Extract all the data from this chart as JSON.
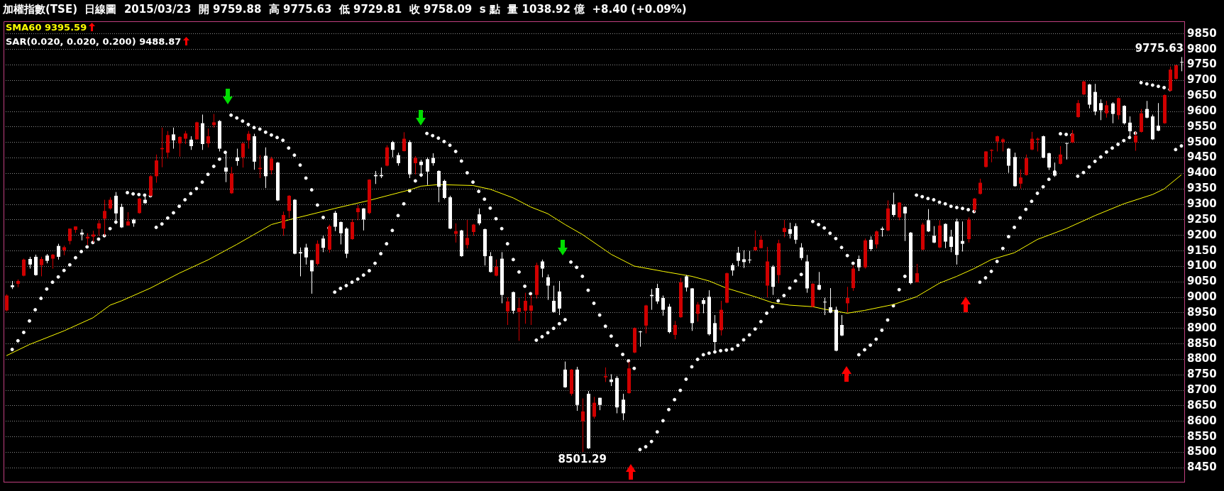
{
  "chart_data": {
    "type": "candlestick",
    "title": "加權指數(TSE)  日線圖  2015/03/23",
    "subtitle": "開 9759.88  高 9775.63  低 9729.81  收 9758.09  s 點  量 1038.92 億  +8.40 (+0.09%)",
    "categories": [
      null,
      null,
      null,
      null,
      null,
      null,
      null,
      null,
      null,
      null,
      null,
      null,
      null,
      null,
      null,
      null,
      null,
      null,
      null,
      null,
      null,
      null,
      null,
      null,
      null,
      null,
      null,
      null,
      null,
      null,
      null,
      null,
      null,
      null,
      null,
      null,
      null,
      null,
      null,
      null,
      null,
      null,
      null,
      null,
      null,
      null,
      null,
      null,
      null,
      null,
      null,
      null,
      null,
      null,
      null,
      null,
      null,
      null,
      null,
      null,
      null,
      null,
      null,
      null,
      null,
      null,
      null,
      null,
      null,
      null,
      null,
      null,
      null,
      null,
      null,
      null,
      null,
      null,
      null,
      null,
      null,
      null,
      null,
      null,
      null,
      null,
      null,
      null,
      null,
      null,
      null,
      null,
      null,
      null,
      null,
      null,
      null,
      null,
      null,
      null,
      null,
      null,
      null,
      null,
      null,
      null,
      null,
      null,
      null,
      null,
      null,
      null,
      null,
      null,
      null,
      null,
      null,
      null,
      null,
      null,
      null,
      null,
      null,
      null,
      null,
      null,
      null,
      null,
      null,
      null,
      null,
      null,
      null,
      null,
      null,
      null,
      null,
      null,
      null,
      null,
      null,
      null,
      null,
      null,
      null,
      null,
      null,
      null,
      null,
      null,
      null,
      null,
      null,
      null,
      null,
      null,
      null,
      null,
      null,
      null,
      null,
      null,
      null,
      null,
      null,
      null,
      null,
      null,
      null,
      null,
      null,
      null,
      null,
      null,
      null,
      null,
      null,
      null,
      null,
      null,
      null,
      null,
      null,
      null,
      null,
      null,
      null,
      null,
      null,
      null,
      null,
      null,
      null,
      null,
      null,
      null,
      null,
      null,
      null,
      null,
      null,
      null,
      null,
      null,
      null
    ],
    "ohlc": [
      [
        8958,
        9010,
        8955,
        9006
      ],
      [
        9039,
        9053,
        9027,
        9033
      ],
      [
        9044,
        9058,
        9033,
        9053
      ],
      [
        9070,
        9125,
        9068,
        9122
      ],
      [
        9124,
        9131,
        9093,
        9106
      ],
      [
        9131,
        9138,
        9070,
        9072
      ],
      [
        9104,
        9131,
        9068,
        9124
      ],
      [
        9135,
        9140,
        9110,
        9118
      ],
      [
        9125,
        9140,
        9093,
        9138
      ],
      [
        9166,
        9173,
        9122,
        9131
      ],
      [
        9152,
        9167,
        9136,
        9162
      ],
      [
        9182,
        9222,
        9171,
        9222
      ],
      [
        9218,
        9229,
        9208,
        9229
      ],
      [
        9209,
        9220,
        9184,
        9203
      ],
      [
        9190,
        9207,
        9169,
        9196
      ],
      [
        9196,
        9215,
        9177,
        9203
      ],
      [
        9222,
        9249,
        9199,
        9239
      ],
      [
        9254,
        9315,
        9199,
        9279
      ],
      [
        9287,
        9323,
        9283,
        9315
      ],
      [
        9328,
        9340,
        9237,
        9271
      ],
      [
        9292,
        9302,
        9224,
        9226
      ],
      [
        9232,
        9275,
        9232,
        9245
      ],
      [
        9251,
        9254,
        9228,
        9239
      ],
      [
        9272,
        9321,
        9270,
        9319
      ],
      [
        9315,
        9332,
        9302,
        9304
      ],
      [
        9328,
        9395,
        9325,
        9391
      ],
      [
        9391,
        9461,
        9370,
        9442
      ],
      [
        9478,
        9548,
        9420,
        9482
      ],
      [
        9467,
        9537,
        9448,
        9524
      ],
      [
        9526,
        9548,
        9480,
        9507
      ],
      [
        9497,
        9520,
        9454,
        9518
      ],
      [
        9512,
        9537,
        9495,
        9529
      ],
      [
        9509,
        9520,
        9476,
        9488
      ],
      [
        9510,
        9567,
        9509,
        9565
      ],
      [
        9562,
        9590,
        9476,
        9495
      ],
      [
        9497,
        9545,
        9484,
        9520
      ],
      [
        9556,
        9592,
        9548,
        9565
      ],
      [
        9569,
        9572,
        9471,
        9480
      ],
      [
        9419,
        9467,
        9372,
        9406
      ],
      [
        9336,
        9421,
        9334,
        9400
      ],
      [
        9452,
        9480,
        9425,
        9440
      ],
      [
        9452,
        9501,
        9419,
        9497
      ],
      [
        9507,
        9537,
        9480,
        9528
      ],
      [
        9520,
        9528,
        9412,
        9438
      ],
      [
        9414,
        9459,
        9385,
        9418
      ],
      [
        9457,
        9484,
        9353,
        9391
      ],
      [
        9410,
        9454,
        9397,
        9448
      ],
      [
        9435,
        9437,
        9311,
        9313
      ],
      [
        9222,
        9277,
        9199,
        9266
      ],
      [
        9279,
        9330,
        9256,
        9328
      ],
      [
        9315,
        9317,
        9139,
        9141
      ],
      [
        9146,
        9161,
        9068,
        9142
      ],
      [
        9161,
        9173,
        9106,
        9129
      ],
      [
        9120,
        9120,
        9012,
        9084
      ],
      [
        9108,
        9184,
        9103,
        9173
      ],
      [
        9190,
        9199,
        9146,
        9160
      ],
      [
        9154,
        9235,
        9144,
        9230
      ],
      [
        9273,
        9279,
        9214,
        9228
      ],
      [
        9243,
        9245,
        9171,
        9207
      ],
      [
        9222,
        9226,
        9127,
        9141
      ],
      [
        9188,
        9252,
        9186,
        9243
      ],
      [
        9275,
        9298,
        9249,
        9288
      ],
      [
        9287,
        9288,
        9216,
        9251
      ],
      [
        9272,
        9381,
        9268,
        9380
      ],
      [
        9395,
        9408,
        9366,
        9391
      ],
      [
        9395,
        9419,
        9385,
        9391
      ],
      [
        9425,
        9491,
        9423,
        9484
      ],
      [
        9501,
        9505,
        9452,
        9476
      ],
      [
        9459,
        9467,
        9425,
        9433
      ],
      [
        9472,
        9533,
        9471,
        9512
      ],
      [
        9501,
        9507,
        9385,
        9397
      ],
      [
        9433,
        9456,
        9397,
        9450
      ],
      [
        9438,
        9444,
        9389,
        9427
      ],
      [
        9446,
        9452,
        9363,
        9406
      ],
      [
        9450,
        9465,
        9425,
        9433
      ],
      [
        9408,
        9410,
        9307,
        9357
      ],
      [
        9376,
        9380,
        9317,
        9321
      ],
      [
        9323,
        9328,
        9220,
        9222
      ],
      [
        9205,
        9239,
        9177,
        9214
      ],
      [
        9216,
        9218,
        9131,
        9133
      ],
      [
        9169,
        9250,
        9158,
        9192
      ],
      [
        9211,
        9237,
        9199,
        9235
      ],
      [
        9268,
        9287,
        9233,
        9239
      ],
      [
        9220,
        9222,
        9103,
        9133
      ],
      [
        9133,
        9146,
        9080,
        9082
      ],
      [
        9070,
        9122,
        9068,
        9099
      ],
      [
        9125,
        9146,
        8981,
        9008
      ],
      [
        8955,
        9000,
        8911,
        8987
      ],
      [
        9017,
        9019,
        8947,
        8957
      ],
      [
        8953,
        8998,
        8860,
        8966
      ],
      [
        8957,
        9015,
        8915,
        8989
      ],
      [
        8957,
        9008,
        8911,
        8974
      ],
      [
        9008,
        9112,
        8996,
        9104
      ],
      [
        9116,
        9122,
        9065,
        9093
      ],
      [
        9065,
        9074,
        8992,
        9038
      ],
      [
        8989,
        9038,
        8951,
        8953
      ],
      [
        9019,
        9053,
        8943,
        8964
      ],
      [
        8767,
        8793,
        8708,
        8710
      ],
      [
        8689,
        8769,
        8683,
        8767
      ],
      [
        8767,
        8776,
        8634,
        8653
      ],
      [
        8600,
        8674,
        8501.29,
        8632
      ],
      [
        8689,
        8698,
        8511,
        8513
      ],
      [
        8615,
        8679,
        8609,
        8660
      ],
      [
        8676,
        8676,
        8636,
        8653
      ],
      [
        8742,
        8774,
        8727,
        8746
      ],
      [
        8735,
        8752,
        8714,
        8727
      ],
      [
        8740,
        8746,
        8626,
        8645
      ],
      [
        8670,
        8689,
        8604,
        8626
      ],
      [
        8691,
        8793,
        8689,
        8771
      ],
      [
        8822,
        8903,
        8820,
        8901
      ],
      [
        8890,
        8892,
        8841,
        8888
      ],
      [
        8909,
        8976,
        8884,
        8974
      ],
      [
        9008,
        9027,
        8960,
        9004
      ],
      [
        9030,
        9044,
        8979,
        8987
      ],
      [
        8998,
        9006,
        8941,
        8960
      ],
      [
        8970,
        8979,
        8884,
        8888
      ],
      [
        8879,
        8924,
        8865,
        8911
      ],
      [
        8936,
        9063,
        8934,
        9049
      ],
      [
        9068,
        9072,
        9019,
        9032
      ],
      [
        9029,
        9030,
        8892,
        8917
      ],
      [
        8947,
        8985,
        8922,
        8977
      ],
      [
        8991,
        8998,
        8949,
        8979
      ],
      [
        9002,
        9023,
        8877,
        8881
      ],
      [
        8917,
        8943,
        8828,
        8856
      ],
      [
        8894,
        8989,
        8877,
        8960
      ],
      [
        8983,
        9080,
        8981,
        9078
      ],
      [
        9104,
        9110,
        9070,
        9087
      ],
      [
        9144,
        9163,
        9101,
        9118
      ],
      [
        9123,
        9152,
        9095,
        9114
      ],
      [
        9122,
        9150,
        9110,
        9120
      ],
      [
        9152,
        9216,
        9150,
        9163
      ],
      [
        9159,
        9199,
        9158,
        9186
      ],
      [
        9038,
        9163,
        9000,
        9116
      ],
      [
        9099,
        9104,
        9008,
        9034
      ],
      [
        9072,
        9186,
        9046,
        9175
      ],
      [
        9211,
        9250,
        9194,
        9224
      ],
      [
        9220,
        9241,
        9190,
        9205
      ],
      [
        9230,
        9239,
        9173,
        9186
      ],
      [
        9161,
        9175,
        9120,
        9127
      ],
      [
        9116,
        9137,
        9015,
        9029
      ],
      [
        8970,
        9046,
        8968,
        9044
      ],
      [
        9040,
        9082,
        9023,
        9025
      ],
      [
        8986,
        8999,
        8943,
        8984
      ],
      [
        8968,
        9030,
        8949,
        8951
      ],
      [
        8960,
        8970,
        8826,
        8828
      ],
      [
        8911,
        8943,
        8875,
        8877
      ],
      [
        8981,
        9034,
        8951,
        8998
      ],
      [
        9030,
        9103,
        9021,
        9093
      ],
      [
        9124,
        9135,
        9085,
        9097
      ],
      [
        9097,
        9190,
        9093,
        9184
      ],
      [
        9186,
        9197,
        9150,
        9156
      ],
      [
        9171,
        9216,
        9158,
        9213
      ],
      [
        9222,
        9228,
        9196,
        9218
      ],
      [
        9216,
        9313,
        9214,
        9287
      ],
      [
        9300,
        9338,
        9260,
        9266
      ],
      [
        9258,
        9307,
        9249,
        9306
      ],
      [
        9292,
        9294,
        9182,
        9271
      ],
      [
        9209,
        9211,
        9042,
        9046
      ],
      [
        9049,
        9108,
        9048,
        9078
      ],
      [
        9154,
        9241,
        9152,
        9235
      ],
      [
        9249,
        9285,
        9211,
        9213
      ],
      [
        9199,
        9230,
        9175,
        9177
      ],
      [
        9161,
        9249,
        9159,
        9232
      ],
      [
        9237,
        9239,
        9159,
        9180
      ],
      [
        9196,
        9218,
        9146,
        9163
      ],
      [
        9245,
        9254,
        9106,
        9137
      ],
      [
        9182,
        9245,
        9148,
        9173
      ],
      [
        9188,
        9258,
        9177,
        9251
      ],
      [
        9283,
        9321,
        9275,
        9319
      ],
      [
        9334,
        9383,
        9332,
        9370
      ],
      [
        9421,
        9472,
        9419,
        9471
      ],
      [
        9473,
        9478,
        9436,
        9476
      ],
      [
        9503,
        9522,
        9471,
        9520
      ],
      [
        9501,
        9514,
        9471,
        9510
      ],
      [
        9480,
        9482,
        9402,
        9425
      ],
      [
        9453,
        9467,
        9357,
        9359
      ],
      [
        9367,
        9413,
        9351,
        9387
      ],
      [
        9395,
        9461,
        9393,
        9449
      ],
      [
        9477,
        9534,
        9475,
        9512
      ],
      [
        9508,
        9516,
        9471,
        9512
      ],
      [
        9520,
        9522,
        9449,
        9451
      ],
      [
        9465,
        9467,
        9411,
        9419
      ],
      [
        9405,
        9435,
        9389,
        9393
      ],
      [
        9431,
        9488,
        9429,
        9461
      ],
      [
        9498,
        9498,
        9445,
        9496
      ],
      [
        9500,
        9540,
        9498,
        9528
      ],
      [
        9582,
        9637,
        9580,
        9627
      ],
      [
        9655,
        9699,
        9653,
        9697
      ],
      [
        9687,
        9689,
        9610,
        9622
      ],
      [
        9663,
        9689,
        9588,
        9600
      ],
      [
        9627,
        9639,
        9572,
        9604
      ],
      [
        9594,
        9634,
        9580,
        9620
      ],
      [
        9626,
        9630,
        9562,
        9592
      ],
      [
        9588,
        9645,
        9574,
        9643
      ],
      [
        9618,
        9620,
        9558,
        9562
      ],
      [
        9564,
        9584,
        9516,
        9536
      ],
      [
        9500,
        9534,
        9473,
        9522
      ],
      [
        9534,
        9608,
        9532,
        9594
      ],
      [
        9608,
        9634,
        9578,
        9580
      ],
      [
        9584,
        9590,
        9508,
        9510
      ],
      [
        9554,
        9627,
        9536,
        9538
      ],
      [
        9562,
        9655,
        9560,
        9653
      ],
      [
        9667,
        9745,
        9665,
        9735
      ],
      [
        9705,
        9751,
        9703,
        9749
      ],
      [
        9759.88,
        9775.63,
        9729.81,
        9758.09
      ]
    ],
    "colors": [
      "#d00000",
      "#ffffff",
      "#d00000",
      "#d00000",
      "#ffffff",
      "#ffffff",
      "#d00000",
      "#ffffff",
      "#d00000",
      "#ffffff",
      "#d00000",
      "#d00000",
      "#d00000",
      "#ffffff",
      "#d00000",
      "#d00000",
      "#d00000",
      "#d00000",
      "#d00000",
      "#ffffff",
      "#ffffff",
      "#d00000",
      "#ffffff",
      "#d00000",
      "#ffffff",
      "#d00000",
      "#d00000",
      "#d00000",
      "#d00000",
      "#ffffff",
      "#d00000",
      "#d00000",
      "#ffffff",
      "#d00000",
      "#ffffff",
      "#d00000",
      "#d00000",
      "#ffffff",
      "#ffffff",
      "#d00000",
      "#ffffff",
      "#d00000",
      "#d00000",
      "#ffffff",
      "#d00000",
      "#ffffff",
      "#d00000",
      "#ffffff",
      "#d00000",
      "#d00000",
      "#ffffff",
      "#ffffff",
      "#ffffff",
      "#ffffff",
      "#d00000",
      "#ffffff",
      "#d00000",
      "#ffffff",
      "#ffffff",
      "#ffffff",
      "#d00000",
      "#d00000",
      "#ffffff",
      "#d00000",
      "#ffffff",
      "#ffffff",
      "#d00000",
      "#ffffff",
      "#ffffff",
      "#d00000",
      "#ffffff",
      "#d00000",
      "#ffffff",
      "#ffffff",
      "#ffffff",
      "#ffffff",
      "#ffffff",
      "#ffffff",
      "#d00000",
      "#ffffff",
      "#d00000",
      "#d00000",
      "#ffffff",
      "#ffffff",
      "#ffffff",
      "#d00000",
      "#ffffff",
      "#d00000",
      "#ffffff",
      "#d00000",
      "#d00000",
      "#d00000",
      "#d00000",
      "#ffffff",
      "#ffffff",
      "#ffffff",
      "#ffffff",
      "#ffffff",
      "#d00000",
      "#ffffff",
      "#d00000",
      "#ffffff",
      "#d00000",
      "#ffffff",
      "#d00000",
      "#ffffff",
      "#ffffff",
      "#ffffff",
      "#d00000",
      "#d00000",
      "#ffffff",
      "#d00000",
      "#ffffff",
      "#ffffff",
      "#ffffff",
      "#ffffff",
      "#d00000",
      "#d00000",
      "#ffffff",
      "#ffffff",
      "#d00000",
      "#ffffff",
      "#ffffff",
      "#ffffff",
      "#d00000",
      "#d00000",
      "#ffffff",
      "#ffffff",
      "#ffffff",
      "#ffffff",
      "#d00000",
      "#d00000",
      "#d00000",
      "#ffffff",
      "#d00000",
      "#d00000",
      "#ffffff",
      "#ffffff",
      "#ffffff",
      "#ffffff",
      "#d00000",
      "#ffffff",
      "#ffffff",
      "#ffffff",
      "#ffffff",
      "#ffffff",
      "#d00000",
      "#d00000",
      "#ffffff",
      "#d00000",
      "#ffffff",
      "#d00000",
      "#ffffff",
      "#d00000",
      "#ffffff",
      "#d00000",
      "#ffffff",
      "#ffffff",
      "#d00000",
      "#d00000",
      "#ffffff",
      "#ffffff",
      "#d00000",
      "#ffffff",
      "#ffffff",
      "#ffffff",
      "#ffffff",
      "#d00000",
      "#d00000",
      "#d00000",
      "#d00000",
      "#d00000",
      "#d00000",
      "#d00000",
      "#ffffff",
      "#ffffff",
      "#d00000",
      "#d00000",
      "#d00000",
      "#d00000",
      "#ffffff",
      "#ffffff",
      "#ffffff",
      "#d00000",
      "#ffffff",
      "#d00000",
      "#d00000",
      "#d00000",
      "#ffffff",
      "#ffffff",
      "#ffffff",
      "#d00000",
      "#ffffff",
      "#d00000",
      "#ffffff",
      "#ffffff",
      "#d00000",
      "#d00000",
      "#ffffff",
      "#ffffff",
      "#ffffff",
      "#d00000",
      "#d00000",
      "#d00000",
      "#ffffff"
    ],
    "series": [
      {
        "name": "SMA60 9395.59",
        "type": "line",
        "color": "#ffff00",
        "values": [
          8812,
          null,
          null,
          null,
          8848,
          null,
          null,
          null,
          null,
          null,
          8892,
          null,
          null,
          null,
          null,
          8934,
          null,
          null,
          8975,
          null,
          8989,
          null,
          null,
          null,
          null,
          9030,
          null,
          null,
          null,
          null,
          9078,
          null,
          null,
          null,
          null,
          9121,
          null,
          null,
          null,
          null,
          9171,
          null,
          null,
          null,
          null,
          null,
          9235,
          null,
          null,
          9250,
          null,
          null,
          null,
          null,
          null,
          null,
          null,
          9287,
          null,
          null,
          null,
          null,
          null,
          9313,
          null,
          null,
          null,
          null,
          null,
          null,
          9347,
          null,
          9359,
          null,
          null,
          9364,
          null,
          null,
          null,
          null,
          null,
          9361,
          null,
          null,
          9349,
          null,
          null,
          null,
          9321,
          null,
          null,
          9292,
          null,
          null,
          9270,
          null,
          null,
          9235,
          null,
          null,
          9203,
          null,
          null,
          null,
          null,
          9139,
          null,
          null,
          null,
          9101,
          null,
          null,
          null,
          null,
          9084,
          null,
          null,
          null,
          null,
          9068,
          null,
          null,
          9053,
          null,
          null,
          9030,
          null,
          null,
          null,
          null,
          9002,
          null,
          null,
          8983,
          null,
          null,
          8975,
          null,
          null,
          null,
          8970,
          null,
          8962,
          null,
          null,
          null,
          8949,
          null,
          null,
          8958,
          null,
          null,
          null,
          null,
          8977,
          null,
          null,
          null,
          9002,
          null,
          null,
          null,
          9046,
          null,
          null,
          9068,
          null,
          null,
          9093,
          null,
          null,
          9122,
          null,
          null,
          null,
          9144,
          null,
          null,
          null,
          9187,
          null,
          null,
          null,
          null,
          9222,
          null,
          null,
          null,
          null,
          9264,
          null,
          null,
          null,
          null,
          9302,
          null,
          null,
          null,
          null,
          9332,
          null,
          9350,
          null,
          null,
          9395.59
        ]
      },
      {
        "name": "SAR(0.020, 0.020, 0.200) 9488.87",
        "type": "scatter",
        "color": "#ffffff",
        "marker": "circle",
        "values": [
          null,
          8832,
          8860,
          8887,
          8924,
          8960,
          8997,
          9027,
          9049,
          9066,
          9087,
          9105,
          9128,
          9148,
          9163,
          9177,
          9188,
          9199,
          9222,
          9243,
          null,
          9338,
          9334,
          9332,
          9330,
          9328,
          9226,
          9237,
          9256,
          9273,
          9294,
          9315,
          9335,
          9351,
          9372,
          9397,
          9423,
          9446,
          9468,
          9588,
          9579,
          9569,
          9558,
          9548,
          9543,
          9533,
          9524,
          9516,
          9507,
          9482,
          9459,
          9427,
          9385,
          9347,
          9298,
          9258,
          9224,
          9017,
          9029,
          9038,
          9049,
          9059,
          9072,
          9086,
          9110,
          9141,
          9173,
          9216,
          9264,
          9302,
          9344,
          9376,
          9395,
          9529,
          9522,
          9514,
          9503,
          9491,
          9471,
          9440,
          9402,
          9372,
          9342,
          9317,
          9288,
          9254,
          9222,
          9173,
          9122,
          9082,
          9036,
          9012,
          8862,
          8873,
          8886,
          8900,
          8915,
          8928,
          9114,
          9097,
          9068,
          9023,
          8981,
          8943,
          8907,
          8875,
          8845,
          8816,
          8795,
          8771,
          8509,
          8518,
          8535,
          8566,
          8602,
          8638,
          8670,
          8700,
          8736,
          8776,
          8800,
          8815,
          8820,
          8824,
          8828,
          8830,
          8833,
          8845,
          8863,
          8879,
          8898,
          8922,
          8949,
          8970,
          8989,
          9006,
          9030,
          9053,
          9074,
          null,
          9245,
          9235,
          9224,
          9207,
          9190,
          9161,
          9135,
          9110,
          8815,
          8831,
          8846,
          8865,
          8894,
          8927,
          8973,
          9025,
          9068,
          null,
          9330,
          9325,
          9319,
          9315,
          9307,
          9302,
          9294,
          9290,
          9287,
          9283,
          9277,
          9049,
          9063,
          9084,
          9116,
          9158,
          9196,
          9226,
          9257,
          9284,
          9310,
          9336,
          9357,
          9381,
          9405,
          9528,
          9526,
          9524,
          9391,
          9403,
          9421,
          9439,
          9453,
          9469,
          9482,
          9494,
          9506,
          9516,
          9530,
          9693,
          9689,
          9685,
          9681,
          9677,
          9671,
          9477,
          9488.87
        ]
      }
    ],
    "ylim": [
      8405,
      9891
    ],
    "yticks": [
      8450,
      8500,
      8550,
      8600,
      8650,
      8700,
      8750,
      8800,
      8850,
      8900,
      8950,
      9000,
      9050,
      9100,
      9150,
      9200,
      9250,
      9300,
      9350,
      9400,
      9450,
      9500,
      9550,
      9600,
      9650,
      9700,
      9750,
      9800,
      9850
    ],
    "tick_labels": "y",
    "grid": "y",
    "legend": "top left",
    "annotations": [
      "9775.63",
      {
        "text": "8501.29",
        "y": 8501.29
      }
    ]
  }
}
